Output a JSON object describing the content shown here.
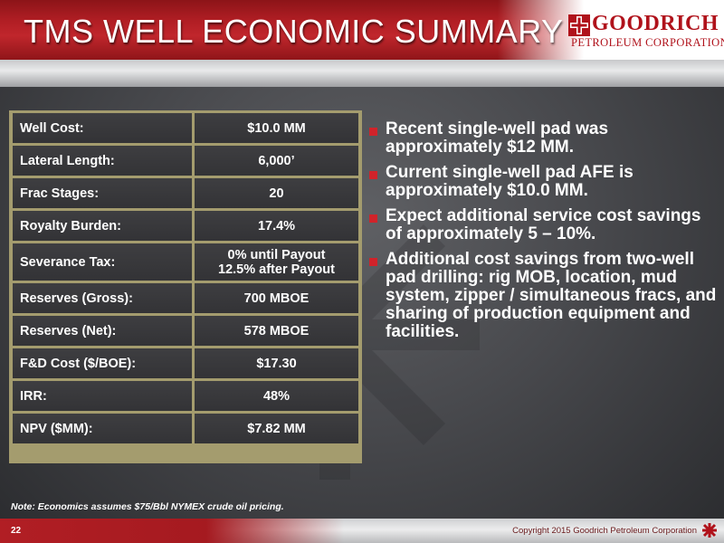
{
  "header": {
    "title": "TMS WELL ECONOMIC SUMMARY",
    "logo_name": "GOODRICH",
    "logo_sub": "Petroleum Corporation"
  },
  "colors": {
    "brand_red": "#b11e24",
    "table_border": "#a49c6e",
    "cell_bg": "#3a3a3d"
  },
  "table": {
    "rows": [
      {
        "label": "Well Cost:",
        "value": "$10.0 MM"
      },
      {
        "label": "Lateral Length:",
        "value": "6,000’"
      },
      {
        "label": "Frac Stages:",
        "value": "20"
      },
      {
        "label": "Royalty Burden:",
        "value": "17.4%"
      },
      {
        "label": "Severance Tax:",
        "value_line1": "0% until Payout",
        "value_line2": "12.5% after Payout"
      },
      {
        "label": "Reserves (Gross):",
        "value": "700 MBOE"
      },
      {
        "label": "Reserves (Net):",
        "value": "578 MBOE"
      },
      {
        "label": "F&D Cost ($/BOE):",
        "value": "$17.30"
      },
      {
        "label": "IRR:",
        "value": "48%"
      },
      {
        "label": "NPV ($MM):",
        "value": "$7.82 MM"
      }
    ]
  },
  "bullets": [
    "Recent single-well pad was approximately $12 MM.",
    "Current single-well pad AFE is approximately $10.0 MM.",
    "Expect additional service cost savings of approximately 5 – 10%.",
    "Additional cost savings from two-well pad drilling: rig MOB, location, mud system, zipper / simultaneous fracs, and sharing of production equipment and facilities."
  ],
  "note": "Note:  Economics assumes $75/Bbl NYMEX crude oil pricing.",
  "footer": {
    "page_number": "22",
    "copyright": "Copyright 2015 Goodrich Petroleum Corporation"
  },
  "icons": [
    "goodrich-logo-mark-icon",
    "bullet-square-icon",
    "watermark-logo-icon"
  ]
}
